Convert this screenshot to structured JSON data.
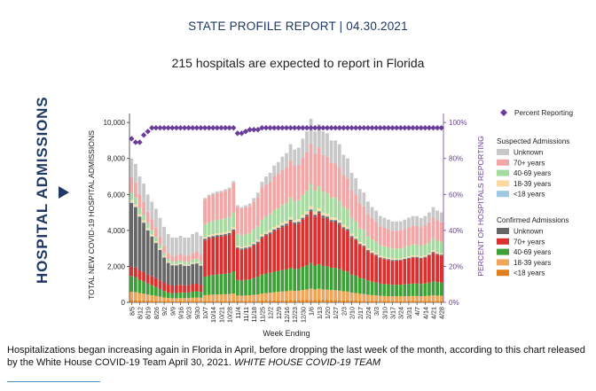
{
  "header": {
    "title": "STATE PROFILE REPORT | 04.30.2021"
  },
  "subheader": {
    "text": "215 hospitals are expected to report in Florida"
  },
  "side_title": "HOSPITAL ADMISSIONS",
  "caption": {
    "text": "Hospitalizations began increasing again in Florida in April, before dropping the last week of the month, according to this chart released by the White House COVID-19 Team April 30, 2021. ",
    "credit": "WHITE HOUSE COVID-19 TEAM"
  },
  "colors": {
    "confirmed": [
      "#e0801c",
      "#f0a65a",
      "#3fa03a",
      "#d93030",
      "#666666"
    ],
    "suspected": [
      "#9ecae1",
      "#fdd8a0",
      "#a6dba0",
      "#f4a6a6",
      "#c8c8c8"
    ],
    "percent": "#6a3d9a",
    "axis_purple": "#6a3d9a"
  },
  "chart_data": {
    "type": "bar",
    "xlabel": "Week Ending",
    "ylabel": "TOTAL NEW COVID-19 HOSPITAL ADMISSIONS",
    "y2label": "PERCENT OF HOSPITALS REPORTING",
    "ylim": [
      0,
      10500
    ],
    "yticks": [
      0,
      2000,
      4000,
      6000,
      8000,
      10000
    ],
    "ytick_labels": [
      "0",
      "2,000",
      "4,000",
      "6,000",
      "8,000",
      "10,000"
    ],
    "y2lim": [
      0,
      105
    ],
    "y2ticks": [
      0,
      20,
      40,
      60,
      80,
      100
    ],
    "y2tick_labels": [
      "0%",
      "20%",
      "40%",
      "60%",
      "80%",
      "100%"
    ],
    "x": [
      "8/5",
      "8/8",
      "8/12",
      "8/15",
      "8/19",
      "8/22",
      "8/26",
      "8/29",
      "9/2",
      "9/5",
      "9/9",
      "9/12",
      "9/16",
      "9/19",
      "9/23",
      "9/26",
      "9/30",
      "10/3",
      "10/7",
      "10/10",
      "10/14",
      "10/17",
      "10/21",
      "10/24",
      "10/28",
      "10/31",
      "11/4",
      "11/7",
      "11/11",
      "11/14",
      "11/18",
      "11/21",
      "11/25",
      "11/28",
      "12/2",
      "12/5",
      "12/9",
      "12/12",
      "12/16",
      "12/19",
      "12/23",
      "12/26",
      "12/30",
      "1/2",
      "1/6",
      "1/9",
      "1/13",
      "1/16",
      "1/20",
      "1/23",
      "1/27",
      "1/30",
      "2/3",
      "2/6",
      "2/10",
      "2/13",
      "2/17",
      "2/20",
      "2/24",
      "2/27",
      "3/3",
      "3/6",
      "3/10",
      "3/13",
      "3/17",
      "3/20",
      "3/24",
      "3/27",
      "3/31",
      "4/3",
      "4/7",
      "4/10",
      "4/14",
      "4/17",
      "4/21",
      "4/24",
      "4/28"
    ],
    "x_tick_labels": [
      "8/5",
      "",
      "8/12",
      "",
      "8/19",
      "",
      "8/26",
      "",
      "9/2",
      "",
      "9/9",
      "",
      "9/16",
      "",
      "9/23",
      "",
      "9/30",
      "",
      "10/7",
      "",
      "10/14",
      "",
      "10/21",
      "",
      "10/28",
      "",
      "11/4",
      "",
      "11/11",
      "",
      "11/18",
      "",
      "11/25",
      "",
      "12/2",
      "",
      "12/9",
      "",
      "12/16",
      "",
      "12/23",
      "",
      "12/30",
      "",
      "1/6",
      "",
      "1/13",
      "",
      "1/20",
      "",
      "1/27",
      "",
      "2/3",
      "",
      "2/10",
      "",
      "2/17",
      "",
      "2/24",
      "",
      "3/3",
      "",
      "3/10",
      "",
      "3/17",
      "",
      "3/24",
      "",
      "3/31",
      "",
      "4/7",
      "",
      "4/14",
      "",
      "4/21",
      "",
      "4/28"
    ],
    "totals": [
      8000,
      7700,
      7000,
      6600,
      6000,
      5600,
      5200,
      4700,
      4200,
      3800,
      3600,
      3600,
      3700,
      3600,
      3600,
      3800,
      3900,
      3700,
      5800,
      6000,
      6100,
      6200,
      6200,
      6300,
      6400,
      6800,
      5400,
      5300,
      5400,
      5500,
      5800,
      6100,
      6700,
      7000,
      7200,
      7600,
      7800,
      8100,
      8300,
      8800,
      8500,
      8600,
      9100,
      9500,
      10200,
      9500,
      10000,
      9500,
      9400,
      9000,
      9000,
      8700,
      8200,
      8000,
      7200,
      6900,
      6300,
      6100,
      5600,
      5300,
      5100,
      4800,
      4700,
      4600,
      4500,
      4500,
      4500,
      4600,
      4700,
      4800,
      4800,
      4700,
      4800,
      5000,
      5300,
      5100,
      5000
    ],
    "series": [
      {
        "name": "<18 years",
        "group": "Confirmed Admissions",
        "values": [
          120,
          118,
          110,
          105,
          100,
          95,
          90,
          84,
          78,
          75,
          72,
          72,
          74,
          72,
          72,
          75,
          76,
          74,
          80,
          82,
          83,
          84,
          84,
          85,
          86,
          90,
          84,
          83,
          84,
          85,
          88,
          90,
          96,
          100,
          102,
          105,
          108,
          110,
          112,
          118,
          115,
          116,
          120,
          125,
          132,
          125,
          130,
          124,
          122,
          118,
          118,
          115,
          110,
          108,
          100,
          97,
          90,
          88,
          82,
          78,
          76,
          73,
          72,
          71,
          70,
          70,
          70,
          71,
          72,
          73,
          73,
          72,
          73,
          75,
          79,
          77,
          76
        ]
      },
      {
        "name": "18-39 years",
        "group": "Confirmed Admissions",
        "values": [
          472,
          451,
          402,
          374,
          333,
          301,
          270,
          231,
          193,
          165,
          155,
          156,
          167,
          162,
          168,
          184,
          191,
          181,
          320,
          336,
          346,
          354,
          357,
          366,
          375,
          403,
          295,
          290,
          300,
          309,
          330,
          350,
          392,
          414,
          430,
          457,
          472,
          493,
          508,
          540,
          524,
          532,
          564,
          593,
          637,
          594,
          625,
          592,
          583,
          560,
          556,
          540,
          505,
          490,
          440,
          420,
          386,
          372,
          343,
          322,
          308,
          288,
          280,
          273,
          266,
          265,
          264,
          269,
          276,
          281,
          279,
          272,
          277,
          290,
          309,
          297,
          289
        ]
      },
      {
        "name": "40-69 years",
        "group": "Confirmed Admissions",
        "values": [
          872,
          834,
          741,
          687,
          613,
          554,
          496,
          426,
          355,
          302,
          285,
          287,
          306,
          298,
          309,
          337,
          351,
          332,
          1030,
          1067,
          1090,
          1108,
          1119,
          1138,
          1160,
          1233,
          864,
          845,
          863,
          880,
          930,
          975,
          1055,
          1088,
          1104,
          1142,
          1162,
          1190,
          1208,
          1265,
          1215,
          1222,
          1285,
          1334,
          1410,
          1320,
          1370,
          1310,
          1297,
          1245,
          1244,
          1206,
          1142,
          1117,
          1009,
          966,
          884,
          857,
          789,
          747,
          719,
          679,
          666,
          653,
          640,
          641,
          643,
          658,
          675,
          690,
          693,
          682,
          697,
          728,
          775,
          747,
          734
        ]
      },
      {
        "name": "70+ years",
        "group": "Confirmed Admissions",
        "values": [
          528,
          531,
          518,
          513,
          501,
          497,
          490,
          477,
          458,
          440,
          426,
          423,
          428,
          415,
          408,
          414,
          417,
          394,
          2013,
          2058,
          2080,
          2097,
          2101,
          2119,
          2142,
          2238,
          1737,
          1705,
          1721,
          1740,
          1815,
          1881,
          2037,
          2110,
          2165,
          2262,
          2314,
          2392,
          2443,
          2567,
          2484,
          2504,
          2627,
          2718,
          2868,
          2723,
          2818,
          2691,
          2660,
          2553,
          2543,
          2463,
          2327,
          2266,
          2063,
          1978,
          1823,
          1770,
          1633,
          1551,
          1494,
          1411,
          1385,
          1360,
          1334,
          1336,
          1339,
          1370,
          1402,
          1433,
          1436,
          1406,
          1434,
          1495,
          1585,
          1526,
          1497
        ]
      },
      {
        "name": "Unknown",
        "group": "Confirmed Admissions",
        "values": [
          3528,
          3357,
          2989,
          2746,
          2453,
          2213,
          1950,
          1692,
          1410,
          1209,
          1123,
          1115,
          1139,
          1088,
          1072,
          1116,
          1128,
          1059,
          82,
          83,
          83,
          83,
          83,
          83,
          84,
          87,
          68,
          66,
          67,
          68,
          70,
          73,
          79,
          82,
          83,
          87,
          89,
          92,
          93,
          99,
          95,
          96,
          101,
          105,
          112,
          104,
          109,
          103,
          101,
          97,
          96,
          93,
          87,
          84,
          75,
          72,
          65,
          63,
          58,
          54,
          52,
          49,
          48,
          47,
          46,
          46,
          46,
          47,
          48,
          49,
          49,
          48,
          49,
          51,
          54,
          52,
          51
        ]
      },
      {
        "name": "<18 years",
        "group": "Suspected Admissions",
        "values": [
          40,
          39,
          36,
          34,
          32,
          30,
          28,
          25,
          22,
          20,
          19,
          19,
          19,
          19,
          19,
          20,
          20,
          19,
          22,
          22,
          23,
          23,
          23,
          23,
          24,
          25,
          19,
          19,
          19,
          20,
          21,
          22,
          24,
          25,
          25,
          27,
          27,
          28,
          29,
          31,
          30,
          30,
          31,
          33,
          35,
          33,
          34,
          33,
          32,
          31,
          31,
          30,
          28,
          28,
          25,
          24,
          22,
          21,
          20,
          19,
          18,
          17,
          17,
          16,
          16,
          16,
          16,
          16,
          17,
          17,
          17,
          17,
          17,
          18,
          19,
          18,
          18
        ]
      },
      {
        "name": "18-39 years",
        "group": "Suspected Admissions",
        "values": [
          120,
          116,
          106,
          100,
          91,
          85,
          78,
          70,
          62,
          56,
          53,
          53,
          55,
          53,
          53,
          56,
          58,
          55,
          85,
          88,
          89,
          91,
          91,
          92,
          94,
          100,
          77,
          76,
          77,
          79,
          83,
          87,
          96,
          100,
          103,
          109,
          111,
          116,
          119,
          126,
          122,
          123,
          130,
          136,
          146,
          136,
          143,
          136,
          135,
          129,
          129,
          124,
          117,
          114,
          103,
          99,
          90,
          87,
          80,
          76,
          73,
          69,
          67,
          66,
          64,
          64,
          64,
          66,
          67,
          69,
          69,
          67,
          69,
          72,
          76,
          73,
          72
        ]
      },
      {
        "name": "40-69 years",
        "group": "Suspected Admissions",
        "values": [
          400,
          382,
          343,
          319,
          285,
          260,
          234,
          203,
          172,
          149,
          142,
          143,
          153,
          150,
          156,
          170,
          178,
          170,
          695,
          720,
          735,
          748,
          755,
          768,
          781,
          830,
          660,
          648,
          660,
          672,
          712,
          751,
          825,
          862,
          887,
          938,
          961,
          997,
          1021,
          1080,
          1043,
          1055,
          1115,
          1163,
          1242,
          1157,
          1215,
          1158,
          1146,
          1099,
          1097,
          1062,
          1001,
          977,
          880,
          844,
          771,
          748,
          686,
          651,
          625,
          589,
          578,
          568,
          555,
          556,
          557,
          570,
          584,
          597,
          598,
          586,
          598,
          623,
          661,
          636,
          624
        ]
      },
      {
        "name": "70+ years",
        "group": "Suspected Admissions",
        "values": [
          880,
          840,
          756,
          703,
          630,
          575,
          520,
          453,
          386,
          336,
          324,
          326,
          347,
          340,
          350,
          380,
          395,
          377,
          1387,
          1437,
          1465,
          1490,
          1500,
          1523,
          1547,
          1637,
          1509,
          1479,
          1491,
          1507,
          1562,
          1612,
          1730,
          1773,
          1807,
          1871,
          1901,
          1944,
          1963,
          2048,
          1961,
          1962,
          2060,
          2133,
          2227,
          2079,
          2149,
          2042,
          2015,
          1926,
          1921,
          1856,
          1752,
          1706,
          1550,
          1487,
          1362,
          1326,
          1222,
          1159,
          1113,
          1048,
          1027,
          1007,
          987,
          988,
          988,
          1010,
          1032,
          1053,
          1052,
          1029,
          1048,
          1090,
          1153,
          1108,
          1086
        ]
      },
      {
        "name": "Unknown",
        "group": "Suspected Admissions",
        "values": [
          1040,
          1032,
          999,
          1019,
          962,
          990,
          1044,
          1039,
          1064,
          1048,
          1001,
          1006,
          1012,
          1003,
          993,
          1048,
          1086,
          1039,
          86,
          87,
          87,
          88,
          88,
          89,
          89,
          93,
          87,
          89,
          118,
          140,
          189,
          259,
          366,
          446,
          494,
          602,
          655,
          738,
          799,
          926,
          911,
          960,
          1067,
          1160,
          1391,
          1229,
          1307,
          1311,
          1309,
          1242,
          1265,
          1311,
          1131,
          1110,
          955,
          913,
          807,
          768,
          687,
          643,
          622,
          577,
          560,
          539,
          522,
          518,
          513,
          523,
          533,
          538,
          534,
          509,
          538,
          558,
          589,
          566,
          553
        ]
      }
    ],
    "percent_reporting": {
      "name": "Percent Reporting",
      "values": [
        91,
        89,
        89,
        93,
        95,
        97,
        97,
        97,
        97,
        97,
        97,
        97,
        97,
        97,
        97,
        97,
        97,
        97,
        97,
        97,
        97,
        97,
        97,
        97,
        97,
        97,
        94,
        94,
        95,
        96,
        96,
        96,
        97,
        97,
        97,
        97,
        97,
        97,
        97,
        97,
        97,
        97,
        97,
        97,
        97,
        97,
        97,
        97,
        97,
        97,
        97,
        97,
        97,
        97,
        97,
        97,
        97,
        97,
        97,
        97,
        97,
        97,
        97,
        97,
        97,
        97,
        97,
        97,
        97,
        97,
        97,
        97,
        97,
        97,
        97,
        97,
        97
      ]
    },
    "legend": {
      "percent_label": "Percent Reporting",
      "suspected_title": "Suspected Admissions",
      "confirmed_title": "Confirmed Admissions",
      "suspected_items": [
        "Unknown",
        "70+ years",
        "40-69 years",
        "18-39 years",
        "<18 years"
      ],
      "confirmed_items": [
        "Unknown",
        "70+ years",
        "40-69 years",
        "18-39 years",
        "<18 years"
      ]
    },
    "legend_placement": "right",
    "grid": false
  }
}
